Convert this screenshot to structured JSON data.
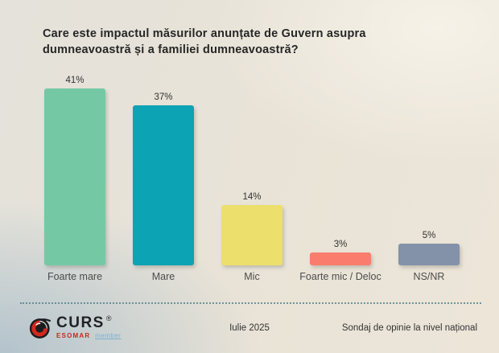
{
  "title": "Care este impactul măsurilor anunțate de Guvern asupra\ndumneavoastră și a familiei dumneavoastră?",
  "chart_data": {
    "type": "bar",
    "categories": [
      "Foarte mare",
      "Mare",
      "Mic",
      "Foarte mic / Deloc",
      "NS/NR"
    ],
    "values": [
      41,
      37,
      14,
      3,
      5
    ],
    "value_labels": [
      "41%",
      "37%",
      "14%",
      "3%",
      "5%"
    ],
    "bar_colors": [
      "#74c9a4",
      "#0ca3b4",
      "#ecdf6c",
      "#f97c6c",
      "#8492a9"
    ],
    "title": "Care este impactul măsurilor anunțate de Guvern asupra dumneavoastră și a familiei dumneavoastră?",
    "xlabel": "",
    "ylabel": "",
    "ylim": [
      0,
      45
    ],
    "grid": false,
    "legend": false,
    "data_labels": true
  },
  "footer": {
    "logo": {
      "brand": "CURS",
      "registered": "®",
      "esomar": "ESOMAR",
      "member": "member",
      "emblem_red": "#cf2a1f",
      "emblem_dark": "#1b1c1e"
    },
    "date": "Iulie 2025",
    "note": "Sondaj de opinie la nivel național"
  }
}
